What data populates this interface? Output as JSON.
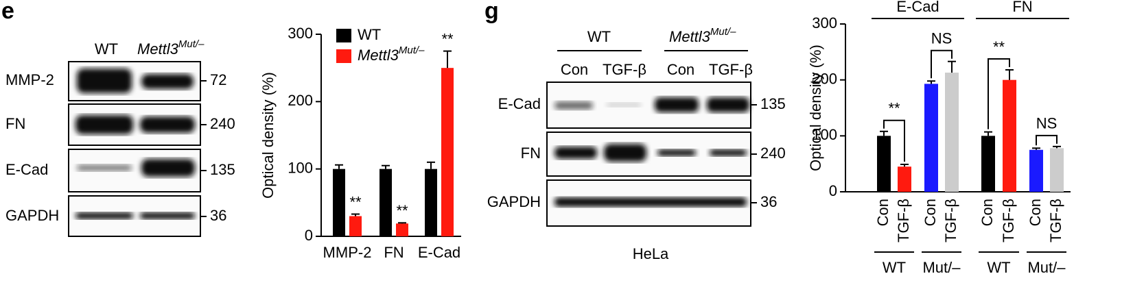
{
  "panels": [
    "e",
    "g"
  ],
  "blot_e": {
    "columns": [
      {
        "text": "WT"
      },
      {
        "text": "Mettl3",
        "sup": "Mut/–"
      }
    ],
    "rows": [
      {
        "label": "MMP-2",
        "kda": "72"
      },
      {
        "label": "FN",
        "kda": "240"
      },
      {
        "label": "E-Cad",
        "kda": "135"
      },
      {
        "label": "GAPDH",
        "kda": "36"
      }
    ]
  },
  "blot_g": {
    "groups": [
      {
        "text": "WT"
      },
      {
        "text": "Mettl3",
        "sup": "Mut/–"
      }
    ],
    "lanes": [
      "Con",
      "TGF-β",
      "Con",
      "TGF-β"
    ],
    "rows": [
      {
        "label": "E-Cad",
        "kda": "135"
      },
      {
        "label": "FN",
        "kda": "240"
      },
      {
        "label": "GAPDH",
        "kda": "36"
      }
    ],
    "cell_line": "HeLa"
  },
  "chart_data": [
    {
      "type": "grouped_bar",
      "y_label": "Optical density (%)",
      "categories": [
        "MMP-2",
        "FN",
        "E-Cad"
      ],
      "series": [
        {
          "name": "WT",
          "color": "#000000",
          "values": [
            100,
            100,
            100
          ],
          "errors": [
            6,
            5,
            10
          ]
        },
        {
          "name": "Mettl3",
          "name_sup": "Mut/–",
          "color": "#ff1a0f",
          "values": [
            30,
            19,
            250
          ],
          "errors": [
            3,
            1,
            25
          ],
          "significance": [
            "**",
            "**",
            "**"
          ]
        }
      ],
      "ylim": [
        0,
        300
      ],
      "yticks": [
        0,
        100,
        200,
        300
      ]
    },
    {
      "type": "bar",
      "y_label": "Optical density (%)",
      "categories": [
        "Con",
        "TGF-β",
        "Con",
        "TGF-β",
        "Con",
        "TGF-β",
        "Con",
        "TGF-β"
      ],
      "values": [
        100,
        45,
        193,
        213,
        100,
        200,
        75,
        78
      ],
      "errors": [
        8,
        4,
        5,
        20,
        7,
        18,
        3,
        3
      ],
      "colors": [
        "#000000",
        "#ff1a0f",
        "#1a1aff",
        "#cccccc",
        "#000000",
        "#ff1a0f",
        "#1a1aff",
        "#cccccc"
      ],
      "comparisons": [
        "**",
        "NS",
        "**",
        "NS"
      ],
      "top_groups": [
        "E-Cad",
        "FN"
      ],
      "bottom_groups": [
        "WT",
        "Mut/–",
        "WT",
        "Mut/–"
      ],
      "ylim": [
        0,
        300
      ],
      "yticks": [
        0,
        100,
        200,
        300
      ]
    }
  ]
}
